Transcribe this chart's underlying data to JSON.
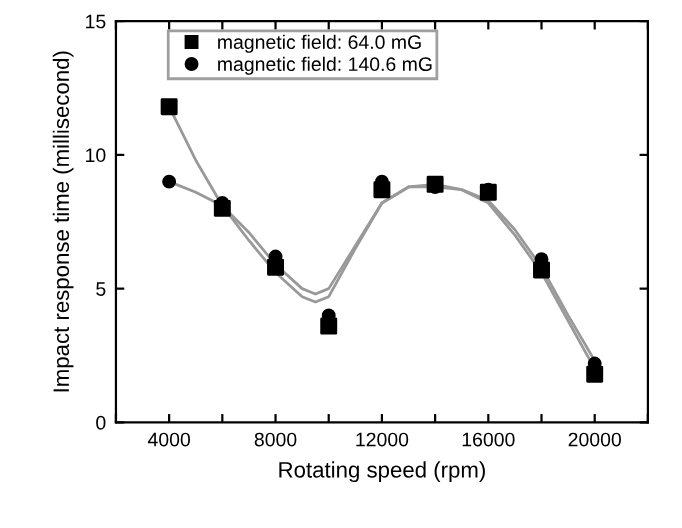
{
  "chart_data": {
    "type": "scatter",
    "xlabel": "Rotating speed (rpm)",
    "ylabel": "Impact response time (millisecond)",
    "xlim": [
      2000,
      22000
    ],
    "xticks": [
      {
        "value": 2000,
        "label": null
      },
      4000,
      {
        "value": 6000,
        "label": null
      },
      8000,
      {
        "value": 10000,
        "label": null
      },
      12000,
      {
        "value": 14000,
        "label": null
      },
      16000,
      {
        "value": 18000,
        "label": null
      },
      20000,
      {
        "value": 22000,
        "label": null
      }
    ],
    "ylim": [
      0,
      15
    ],
    "yticks": [
      0,
      5,
      10,
      15
    ],
    "grid": false,
    "legend": "top left",
    "x": [
      4000,
      6000,
      8000,
      10000,
      12000,
      14000,
      16000,
      18000,
      20000
    ],
    "series": [
      {
        "name": "magnetic field: 64.0 mG",
        "color": "#000000",
        "marker": "square",
        "values": [
          11.8,
          8.0,
          5.8,
          3.6,
          8.7,
          8.9,
          8.6,
          5.7,
          1.8
        ]
      },
      {
        "name": "magnetic field: 140.6 mG",
        "color": "#000000",
        "marker": "circle",
        "values": [
          9.0,
          8.2,
          6.2,
          4.0,
          9.0,
          8.8,
          8.7,
          6.1,
          2.2
        ]
      },
      {
        "type": "line",
        "color": "#999999",
        "x": [
          4000,
          5000,
          6000,
          7000,
          8000,
          9000,
          9500,
          10000,
          11000,
          12000,
          13000,
          14000,
          15000,
          16000,
          17000,
          18000,
          19000,
          20000
        ],
        "values": [
          11.8,
          9.8,
          8.1,
          6.8,
          5.6,
          4.7,
          4.5,
          4.7,
          6.5,
          8.2,
          8.8,
          8.9,
          8.7,
          8.2,
          7.0,
          5.6,
          3.8,
          2.0
        ]
      },
      {
        "type": "line",
        "color": "#999999",
        "x": [
          4000,
          5000,
          6000,
          7000,
          8000,
          9000,
          9500,
          10000,
          11000,
          12000,
          13000,
          14000,
          15000,
          16000,
          17000,
          18000,
          19000,
          20000
        ],
        "values": [
          9.0,
          8.6,
          8.1,
          7.1,
          5.9,
          5.0,
          4.8,
          5.0,
          6.6,
          8.2,
          8.8,
          8.8,
          8.7,
          8.3,
          7.2,
          5.8,
          4.0,
          2.3
        ]
      }
    ]
  }
}
